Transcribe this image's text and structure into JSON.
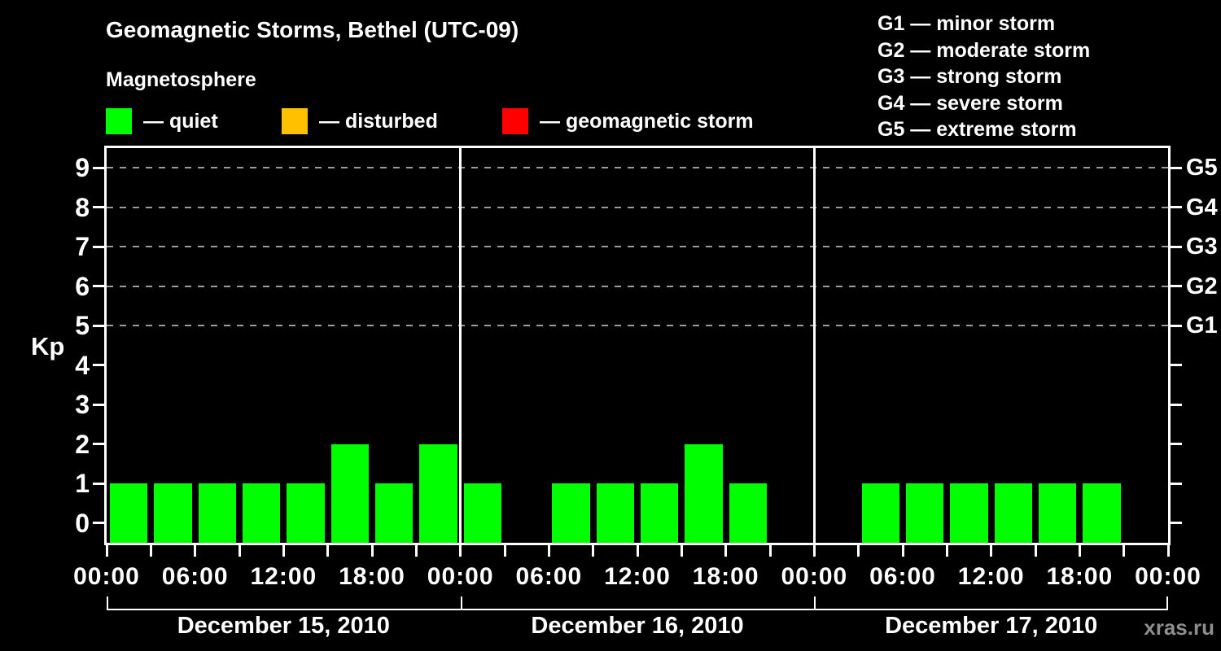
{
  "header": {
    "title": "Geomagnetic Storms, Bethel (UTC-09)",
    "subtitle": "Magnetosphere"
  },
  "legend": {
    "items": [
      {
        "name": "quiet",
        "label": "— quiet",
        "color": "#00ff00"
      },
      {
        "name": "disturbed",
        "label": "— disturbed",
        "color": "#ffc000"
      },
      {
        "name": "geomagnetic-storm",
        "label": "— geomagnetic storm",
        "color": "#ff0000"
      }
    ]
  },
  "g_legend": {
    "items": [
      "G1 — minor storm",
      "G2 — moderate storm",
      "G3 — strong storm",
      "G4 — severe storm",
      "G5 — extreme storm"
    ]
  },
  "watermark": "xras.ru",
  "chart_data": {
    "type": "bar",
    "title": "Geomagnetic Storms, Bethel (UTC-09)",
    "ylabel": "Kp",
    "xlabel": "",
    "ylim": [
      -0.5,
      9.5
    ],
    "y_ticks": [
      0,
      1,
      2,
      3,
      4,
      5,
      6,
      7,
      8,
      9
    ],
    "gridlines_kp": [
      5,
      6,
      7,
      8,
      9
    ],
    "right_axis_labels": [
      {
        "kp": 5,
        "label": "G1"
      },
      {
        "kp": 6,
        "label": "G2"
      },
      {
        "kp": 7,
        "label": "G3"
      },
      {
        "kp": 8,
        "label": "G4"
      },
      {
        "kp": 9,
        "label": "G5"
      }
    ],
    "slot_hours": 3,
    "x_tick_interval_hours": 3,
    "x_label_interval_hours": 6,
    "time_labels": [
      "00:00",
      "06:00",
      "12:00",
      "18:00",
      "00:00",
      "06:00",
      "12:00",
      "18:00",
      "00:00",
      "06:00",
      "12:00",
      "18:00",
      "00:00"
    ],
    "bar_color": "#00ff00",
    "grid_color": "#9b9b9b",
    "legend_position": "top",
    "grid": "dashed horizontal at Kp 5-9 only",
    "days": [
      {
        "date": "December 15, 2010",
        "kp_3h": [
          1,
          1,
          1,
          1,
          1,
          2,
          1,
          2
        ]
      },
      {
        "date": "December 16, 2010",
        "kp_3h": [
          1,
          null,
          1,
          1,
          1,
          2,
          1,
          null
        ]
      },
      {
        "date": "December 17, 2010",
        "kp_3h": [
          null,
          1,
          1,
          1,
          1,
          1,
          1,
          null
        ]
      }
    ]
  }
}
